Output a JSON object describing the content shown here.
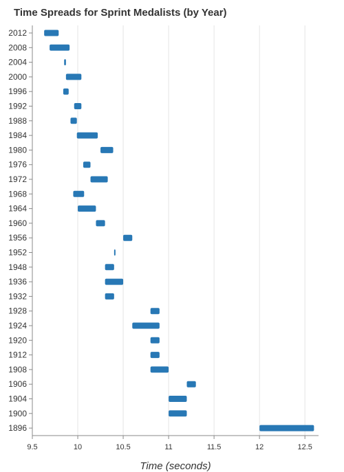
{
  "chart_data": {
    "type": "bar",
    "subtype": "range-bar",
    "orientation": "horizontal",
    "title": "Time Spreads for Sprint Medalists (by Year)",
    "xlabel": "Time (seconds)",
    "ylabel": "",
    "xlim": [
      9.5,
      12.65
    ],
    "xticks": [
      "9.5",
      "10",
      "10.5",
      "11",
      "11.5",
      "12",
      "12.5"
    ],
    "grid": true,
    "bar_color": "#2878b5",
    "categories": [
      "2012",
      "2008",
      "2004",
      "2000",
      "1996",
      "1992",
      "1988",
      "1984",
      "1980",
      "1976",
      "1972",
      "1968",
      "1964",
      "1960",
      "1956",
      "1952",
      "1948",
      "1936",
      "1932",
      "1928",
      "1924",
      "1920",
      "1912",
      "1908",
      "1906",
      "1904",
      "1900",
      "1896"
    ],
    "ranges": [
      [
        9.63,
        9.79
      ],
      [
        9.69,
        9.91
      ],
      [
        9.85,
        9.87
      ],
      [
        9.87,
        10.04
      ],
      [
        9.84,
        9.9
      ],
      [
        9.96,
        10.04
      ],
      [
        9.92,
        9.99
      ],
      [
        9.99,
        10.22
      ],
      [
        10.25,
        10.39
      ],
      [
        10.06,
        10.14
      ],
      [
        10.14,
        10.33
      ],
      [
        9.95,
        10.07
      ],
      [
        10.0,
        10.2
      ],
      [
        10.2,
        10.3
      ],
      [
        10.5,
        10.6
      ],
      [
        10.4,
        10.41
      ],
      [
        10.3,
        10.4
      ],
      [
        10.3,
        10.5
      ],
      [
        10.3,
        10.4
      ],
      [
        10.8,
        10.9
      ],
      [
        10.6,
        10.9
      ],
      [
        10.8,
        10.9
      ],
      [
        10.8,
        10.9
      ],
      [
        10.8,
        11.0
      ],
      [
        11.2,
        11.3
      ],
      [
        11.0,
        11.2
      ],
      [
        11.0,
        11.2
      ],
      [
        12.0,
        12.6
      ]
    ]
  }
}
